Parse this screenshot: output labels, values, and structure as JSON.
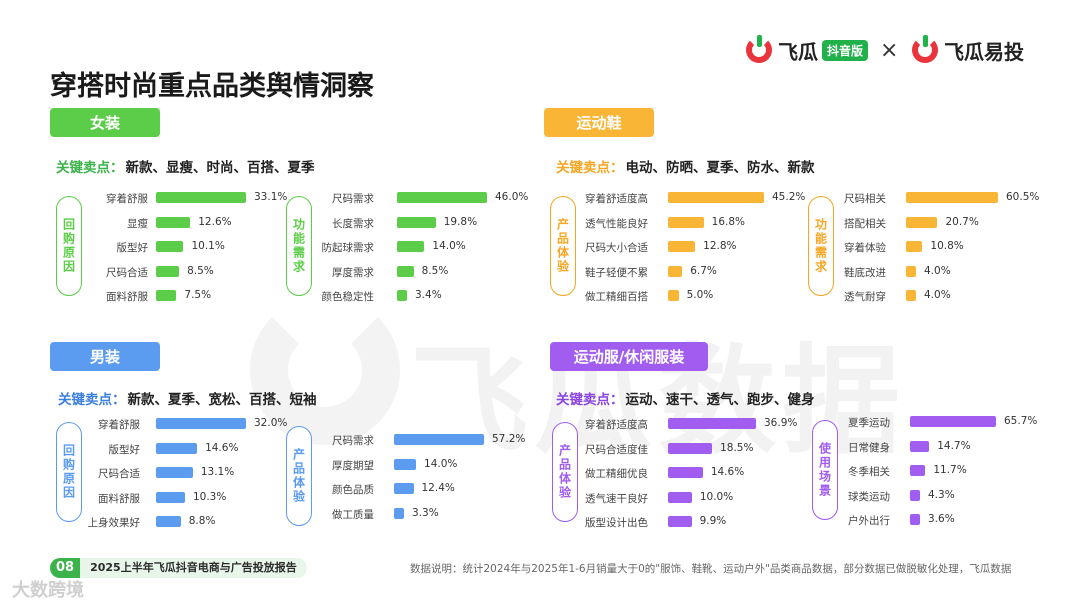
{
  "page_title": "穿搭时尚重点品类舆情洞察",
  "logos": {
    "brand1": "飞瓜",
    "badge": "抖音版",
    "cross": "×",
    "brand2": "飞瓜易投"
  },
  "watermark": "飞瓜数据",
  "footer": {
    "page_num": "08",
    "report": "2025上半年飞瓜抖音电商与广告投放报告",
    "note": "数据说明：统计2024年与2025年1-6月销量大于0的\"服饰、鞋靴、运动户外\"品类商品数据，部分数据已做脱敏化处理，飞瓜数据",
    "corner": "大数跨境"
  },
  "colors": {
    "green": "#5ccd48",
    "blue": "#5b9bf0",
    "orange": "#f9b636",
    "purple": "#a15cf0"
  },
  "chart_data": [
    {
      "type": "bar",
      "section": "女装",
      "key_label": "关键卖点：",
      "key_points": "新款、显瘦、时尚、百搭、夏季",
      "groups": [
        {
          "label": "回购原因",
          "categories": [
            "穿着舒服",
            "显瘦",
            "版型好",
            "尺码合适",
            "面料舒服"
          ],
          "values": [
            33.1,
            12.6,
            10.1,
            8.5,
            7.5
          ],
          "value_labels": [
            "33.1%",
            "12.6%",
            "10.1%",
            "8.5%",
            "7.5%"
          ]
        },
        {
          "label": "功能需求",
          "categories": [
            "尺码需求",
            "长度需求",
            "防起球需求",
            "厚度需求",
            "颜色稳定性"
          ],
          "values": [
            46.0,
            19.8,
            14.0,
            8.5,
            3.4
          ],
          "value_labels": [
            "46.0%",
            "19.8%",
            "14.0%",
            "8.5%",
            "3.4%"
          ]
        }
      ]
    },
    {
      "type": "bar",
      "section": "运动鞋",
      "key_label": "关键卖点：",
      "key_points": "电动、防晒、夏季、防水、新款",
      "groups": [
        {
          "label": "产品体验",
          "categories": [
            "穿着舒适度高",
            "透气性能良好",
            "尺码大小合适",
            "鞋子轻便不累",
            "做工精细百搭"
          ],
          "values": [
            45.2,
            16.8,
            12.8,
            6.7,
            5.0
          ],
          "value_labels": [
            "45.2%",
            "16.8%",
            "12.8%",
            "6.7%",
            "5.0%"
          ]
        },
        {
          "label": "功能需求",
          "categories": [
            "尺码相关",
            "搭配相关",
            "穿着体验",
            "鞋底改进",
            "透气耐穿"
          ],
          "values": [
            60.5,
            20.7,
            10.8,
            4.0,
            4.0
          ],
          "value_labels": [
            "60.5%",
            "20.7%",
            "10.8%",
            "4.0%",
            "4.0%"
          ]
        }
      ]
    },
    {
      "type": "bar",
      "section": "男装",
      "key_label": "关键卖点：",
      "key_points": "新款、夏季、宽松、百搭、短袖",
      "groups": [
        {
          "label": "回购原因",
          "categories": [
            "穿着舒服",
            "版型好",
            "尺码合适",
            "面料舒服",
            "上身效果好"
          ],
          "values": [
            32.0,
            14.6,
            13.1,
            10.3,
            8.8
          ],
          "value_labels": [
            "32.0%",
            "14.6%",
            "13.1%",
            "10.3%",
            "8.8%"
          ]
        },
        {
          "label": "产品体验",
          "categories": [
            "尺码需求",
            "厚度期望",
            "颜色品质",
            "做工质量"
          ],
          "values": [
            57.2,
            14.0,
            12.4,
            3.3
          ],
          "value_labels": [
            "57.2%",
            "14.0%",
            "12.4%",
            "3.3%"
          ]
        }
      ]
    },
    {
      "type": "bar",
      "section": "运动服/休闲服装",
      "key_label": "关键卖点：",
      "key_points": "运动、速干、透气、跑步、健身",
      "groups": [
        {
          "label": "产品体验",
          "categories": [
            "穿着舒适度高",
            "尺码合适度佳",
            "做工精细优良",
            "透气速干良好",
            "版型设计出色"
          ],
          "values": [
            36.9,
            18.5,
            14.6,
            10.0,
            9.9
          ],
          "value_labels": [
            "36.9%",
            "18.5%",
            "14.6%",
            "10.0%",
            "9.9%"
          ]
        },
        {
          "label": "使用场景",
          "categories": [
            "夏季运动",
            "日常健身",
            "冬季相关",
            "球类运动",
            "户外出行"
          ],
          "values": [
            65.7,
            14.7,
            11.7,
            4.3,
            3.6
          ],
          "value_labels": [
            "65.7%",
            "14.7%",
            "11.7%",
            "4.3%",
            "3.6%"
          ]
        }
      ]
    }
  ]
}
